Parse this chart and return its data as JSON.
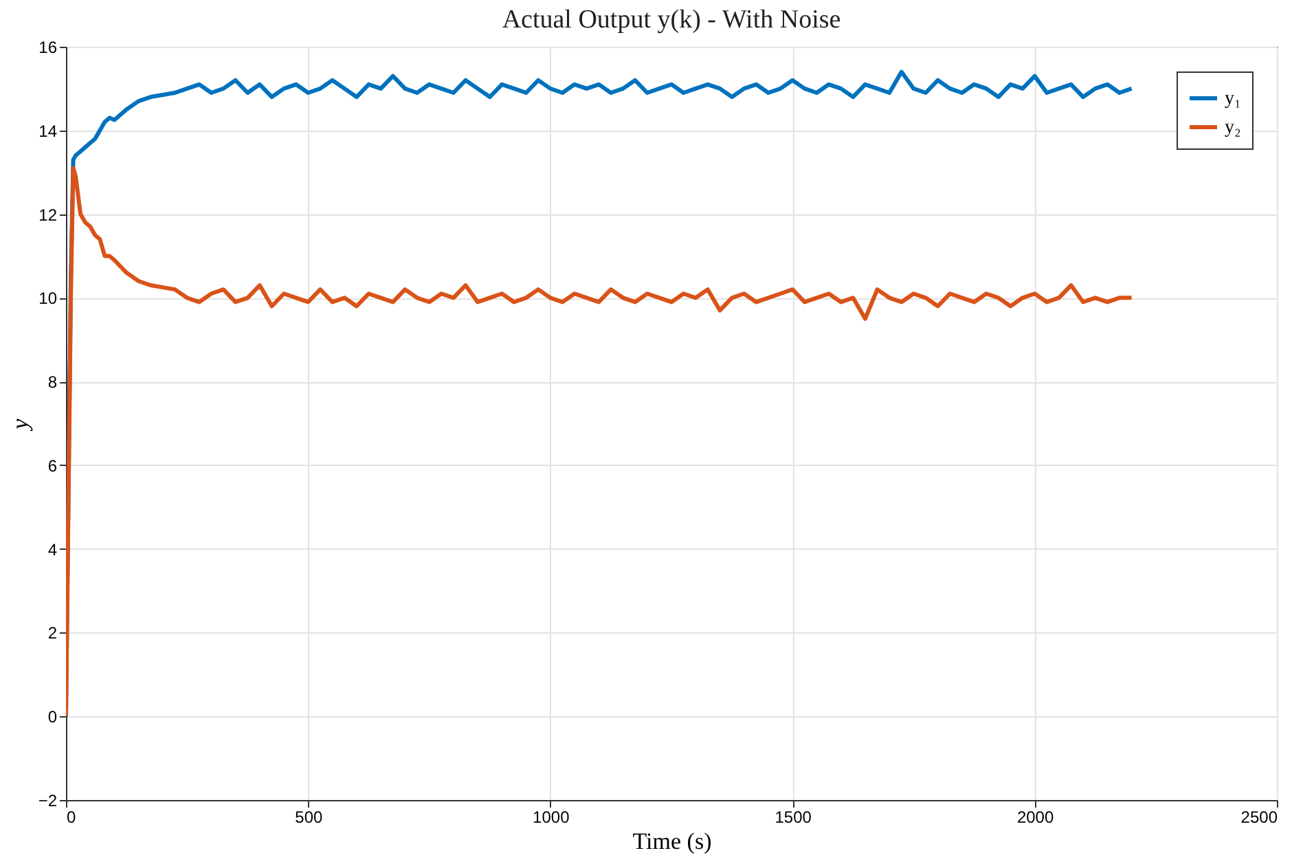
{
  "chart_data": {
    "type": "line",
    "title": "Actual Output y(k) - With Noise",
    "xlabel": "Time (s)",
    "ylabel": "y",
    "x": [
      0,
      10,
      15,
      20,
      30,
      40,
      50,
      60,
      70,
      80,
      90,
      100,
      125,
      150,
      175,
      200,
      225,
      250,
      275,
      300,
      325,
      350,
      375,
      400,
      425,
      450,
      475,
      500,
      525,
      550,
      575,
      600,
      625,
      650,
      675,
      700,
      725,
      750,
      775,
      800,
      825,
      850,
      875,
      900,
      925,
      950,
      975,
      1000,
      1025,
      1050,
      1075,
      1100,
      1125,
      1150,
      1175,
      1200,
      1225,
      1250,
      1275,
      1300,
      1325,
      1350,
      1375,
      1400,
      1425,
      1450,
      1475,
      1500,
      1525,
      1550,
      1575,
      1600,
      1625,
      1650,
      1675,
      1700,
      1725,
      1750,
      1775,
      1800,
      1825,
      1850,
      1875,
      1900,
      1925,
      1950,
      1975,
      2000,
      2025,
      2050,
      2075,
      2100,
      2125,
      2150,
      2175,
      2200
    ],
    "series": [
      {
        "name": "y₁",
        "color": "#0072bd",
        "values": [
          0,
          10.5,
          13.3,
          13.4,
          13.5,
          13.6,
          13.7,
          13.8,
          14.0,
          14.2,
          14.3,
          14.25,
          14.5,
          14.7,
          14.8,
          14.85,
          14.9,
          15.0,
          15.1,
          14.9,
          15.0,
          15.2,
          14.9,
          15.1,
          14.8,
          15.0,
          15.1,
          14.9,
          15.0,
          15.2,
          15.0,
          14.8,
          15.1,
          15.0,
          15.3,
          15.0,
          14.9,
          15.1,
          15.0,
          14.9,
          15.2,
          15.0,
          14.8,
          15.1,
          15.0,
          14.9,
          15.2,
          15.0,
          14.9,
          15.1,
          15.0,
          15.1,
          14.9,
          15.0,
          15.2,
          14.9,
          15.0,
          15.1,
          14.9,
          15.0,
          15.1,
          15.0,
          14.8,
          15.0,
          15.1,
          14.9,
          15.0,
          15.2,
          15.0,
          14.9,
          15.1,
          15.0,
          14.8,
          15.1,
          15.0,
          14.9,
          15.4,
          15.0,
          14.9,
          15.2,
          15.0,
          14.9,
          15.1,
          15.0,
          14.8,
          15.1,
          15.0,
          15.3,
          14.9,
          15.0,
          15.1,
          14.8,
          15.0,
          15.1,
          14.9,
          15.0
        ]
      },
      {
        "name": "y₂",
        "color": "#d95319",
        "values": [
          0,
          10,
          13.1,
          12.9,
          12.0,
          11.8,
          11.7,
          11.5,
          11.4,
          11.0,
          11.0,
          10.9,
          10.6,
          10.4,
          10.3,
          10.25,
          10.2,
          10.0,
          9.9,
          10.1,
          10.2,
          9.9,
          10.0,
          10.3,
          9.8,
          10.1,
          10.0,
          9.9,
          10.2,
          9.9,
          10.0,
          9.8,
          10.1,
          10.0,
          9.9,
          10.2,
          10.0,
          9.9,
          10.1,
          10.0,
          10.3,
          9.9,
          10.0,
          10.1,
          9.9,
          10.0,
          10.2,
          10.0,
          9.9,
          10.1,
          10.0,
          9.9,
          10.2,
          10.0,
          9.9,
          10.1,
          10.0,
          9.9,
          10.1,
          10.0,
          10.2,
          9.7,
          10.0,
          10.1,
          9.9,
          10.0,
          10.1,
          10.2,
          9.9,
          10.0,
          10.1,
          9.9,
          10.0,
          9.5,
          10.2,
          10.0,
          9.9,
          10.1,
          10.0,
          9.8,
          10.1,
          10.0,
          9.9,
          10.1,
          10.0,
          9.8,
          10.0,
          10.1,
          9.9,
          10.0,
          10.3,
          9.9,
          10.0,
          9.9,
          10.0,
          10.0
        ]
      }
    ],
    "xlim": [
      0,
      2500
    ],
    "xticks": [
      0,
      500,
      1000,
      1500,
      2000,
      2500
    ],
    "ylim": [
      -2,
      16
    ],
    "yticks": [
      -2,
      0,
      2,
      4,
      6,
      8,
      10,
      12,
      14,
      16
    ],
    "grid": true,
    "legend": "top right",
    "marker": "none",
    "line_style": "solid"
  }
}
